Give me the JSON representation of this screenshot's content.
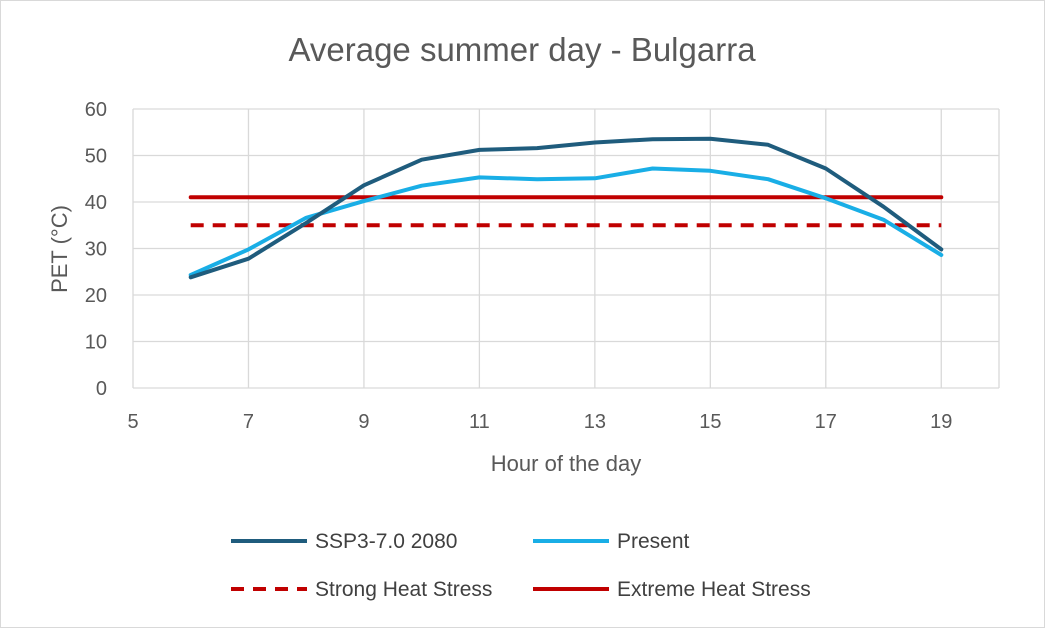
{
  "chart_data": {
    "type": "line",
    "title": "Average summer day - Bulgarra",
    "xlabel": "Hour of the day",
    "ylabel": "PET (°C)",
    "xlim": [
      5,
      20
    ],
    "ylim": [
      0,
      60
    ],
    "x_ticks": [
      5,
      7,
      9,
      11,
      13,
      15,
      17,
      19
    ],
    "y_ticks": [
      0,
      10,
      20,
      30,
      40,
      50,
      60
    ],
    "grid": true,
    "legend_position": "bottom",
    "x": [
      6,
      7,
      8,
      9,
      10,
      11,
      12,
      13,
      14,
      15,
      16,
      17,
      18,
      19
    ],
    "series": [
      {
        "name": "SSP3-7.0 2080",
        "color": "#1f5c7d",
        "dash": "solid",
        "values": [
          23.8,
          27.8,
          35.5,
          43.6,
          49.1,
          51.2,
          51.6,
          52.8,
          53.5,
          53.6,
          52.3,
          47.2,
          39.0,
          29.8
        ]
      },
      {
        "name": "Present",
        "color": "#19aee6",
        "dash": "solid",
        "values": [
          24.3,
          29.8,
          36.6,
          40.2,
          43.5,
          45.3,
          44.9,
          45.1,
          47.2,
          46.7,
          44.9,
          40.8,
          36.2,
          28.6
        ]
      },
      {
        "name": "Strong Heat Stress",
        "color": "#c00000",
        "dash": "dashed",
        "values": [
          35,
          35,
          35,
          35,
          35,
          35,
          35,
          35,
          35,
          35,
          35,
          35,
          35,
          35
        ]
      },
      {
        "name": "Extreme Heat Stress",
        "color": "#c00000",
        "dash": "solid",
        "values": [
          41,
          41,
          41,
          41,
          41,
          41,
          41,
          41,
          41,
          41,
          41,
          41,
          41,
          41
        ]
      }
    ]
  }
}
